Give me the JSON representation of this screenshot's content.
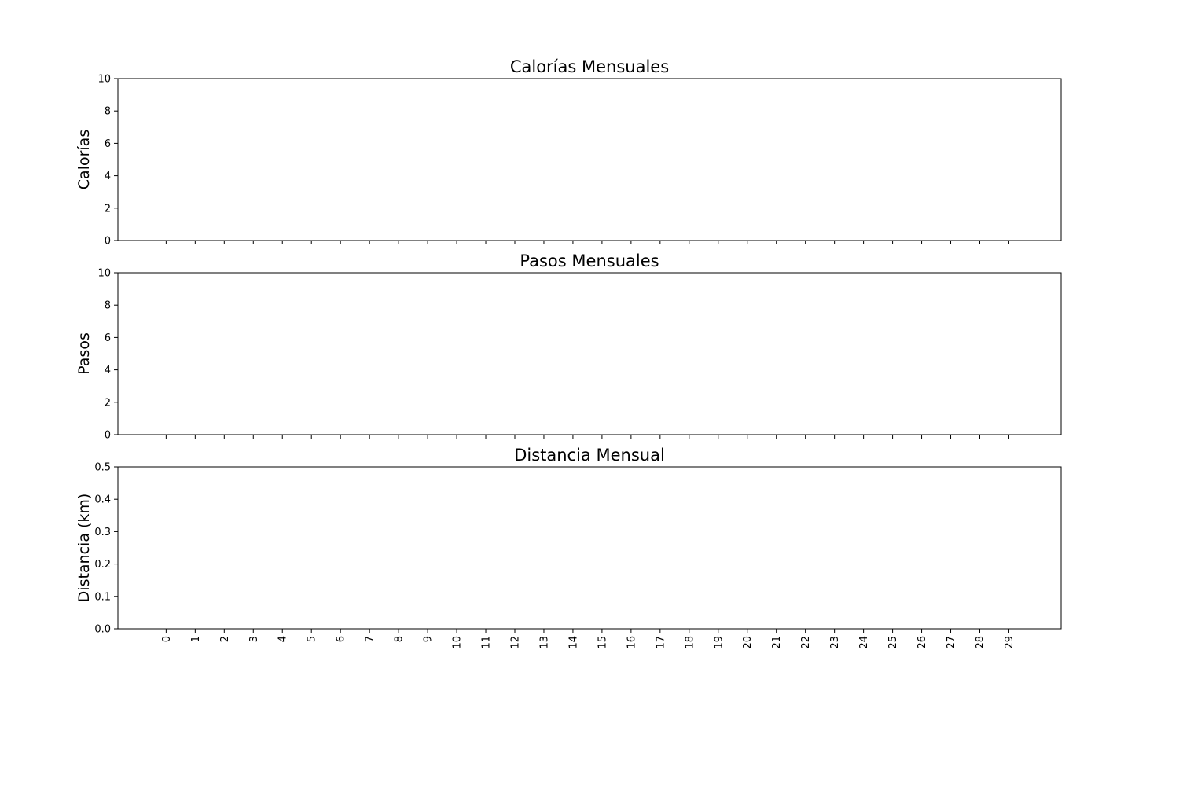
{
  "chart_data": [
    {
      "type": "line",
      "title": "Calorías Mensuales",
      "xlabel": "",
      "ylabel": "Calorías",
      "x": [
        0,
        1,
        2,
        3,
        4,
        5,
        6,
        7,
        8,
        9,
        10,
        11,
        12,
        13,
        14,
        15,
        16,
        17,
        18,
        19,
        20,
        21,
        22,
        23,
        24,
        25,
        26,
        27,
        28,
        29
      ],
      "series": [],
      "ylim": [
        0,
        10
      ],
      "yticks": [
        "0",
        "2",
        "4",
        "6",
        "8",
        "10"
      ],
      "xtick_labels_visible": false,
      "grid": false
    },
    {
      "type": "line",
      "title": "Pasos Mensuales",
      "xlabel": "",
      "ylabel": "Pasos",
      "x": [
        0,
        1,
        2,
        3,
        4,
        5,
        6,
        7,
        8,
        9,
        10,
        11,
        12,
        13,
        14,
        15,
        16,
        17,
        18,
        19,
        20,
        21,
        22,
        23,
        24,
        25,
        26,
        27,
        28,
        29
      ],
      "series": [],
      "ylim": [
        0,
        10
      ],
      "yticks": [
        "0",
        "2",
        "4",
        "6",
        "8",
        "10"
      ],
      "xtick_labels_visible": false,
      "grid": false
    },
    {
      "type": "line",
      "title": "Distancia Mensual",
      "xlabel": "",
      "ylabel": "Distancia (km)",
      "x": [
        0,
        1,
        2,
        3,
        4,
        5,
        6,
        7,
        8,
        9,
        10,
        11,
        12,
        13,
        14,
        15,
        16,
        17,
        18,
        19,
        20,
        21,
        22,
        23,
        24,
        25,
        26,
        27,
        28,
        29
      ],
      "series": [],
      "ylim": [
        0,
        0.5
      ],
      "yticks": [
        "0.0",
        "0.1",
        "0.2",
        "0.3",
        "0.4",
        "0.5"
      ],
      "xtick_labels_visible": true,
      "xtick_rotation": "vertical",
      "grid": false
    }
  ]
}
